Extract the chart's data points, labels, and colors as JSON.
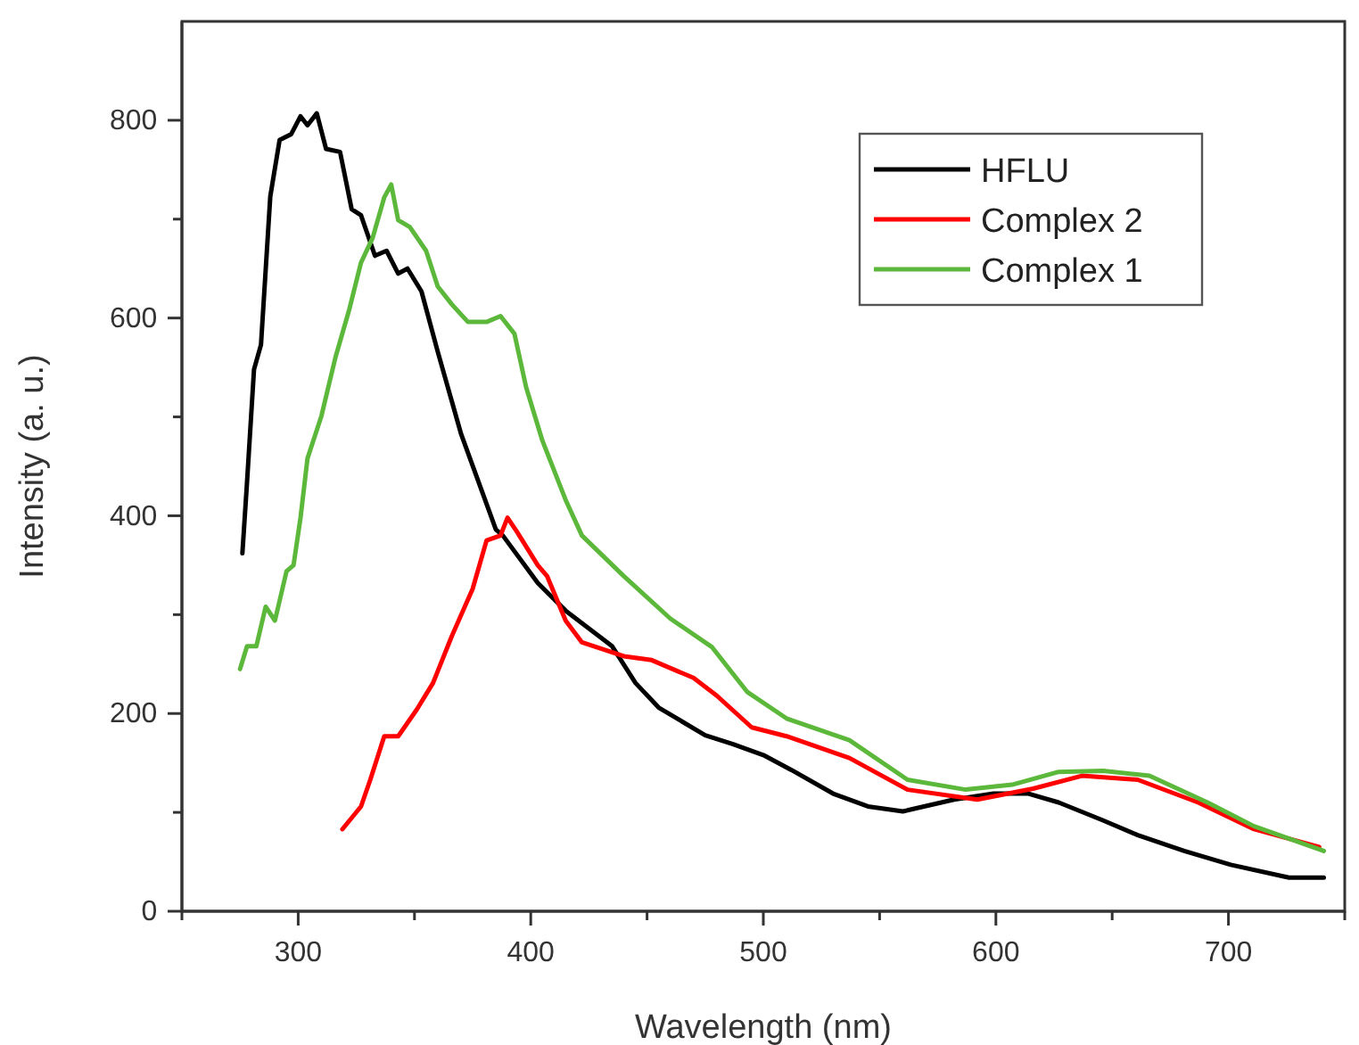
{
  "chart_data": {
    "type": "line",
    "xlabel": "Wavelength (nm)",
    "ylabel": "Intensity (a. u.)",
    "xlim": [
      250,
      750
    ],
    "xticks": [
      {
        "value": 250,
        "label": null
      },
      300,
      {
        "value": 350,
        "label": null
      },
      400,
      {
        "value": 450,
        "label": null
      },
      500,
      {
        "value": 550,
        "label": null
      },
      600,
      {
        "value": 650,
        "label": null
      },
      700,
      {
        "value": 750,
        "label": null
      }
    ],
    "ylim": [
      0,
      900
    ],
    "yticks": [
      0,
      {
        "value": 100,
        "label": null
      },
      200,
      {
        "value": 300,
        "label": null
      },
      400,
      {
        "value": 500,
        "label": null
      },
      600,
      {
        "value": 700,
        "label": null
      },
      800
    ],
    "grid": false,
    "legend": "top right",
    "line_style": "solid",
    "marker": "none",
    "series": [
      {
        "name": "HFLU",
        "color": "#000000",
        "x": [
          276,
          278,
          281,
          284,
          288,
          292,
          297,
          301,
          304,
          308,
          312,
          318,
          323,
          327,
          333,
          338,
          343,
          347,
          353,
          360,
          370,
          385,
          388,
          403,
          415,
          435,
          445,
          455,
          475,
          487,
          500,
          512,
          530,
          545,
          560,
          582,
          599,
          614,
          627,
          646,
          661,
          681,
          701,
          726,
          741
        ],
        "values": [
          362,
          434,
          548,
          573,
          723,
          780,
          786,
          804,
          795,
          807,
          771,
          768,
          710,
          704,
          663,
          668,
          645,
          650,
          627,
          566,
          483,
          386,
          380,
          332,
          304,
          268,
          231,
          206,
          178,
          169,
          158,
          143,
          119,
          106,
          101,
          113,
          119,
          119,
          110,
          92,
          77,
          61,
          47,
          34,
          34
        ]
      },
      {
        "name": "Complex 2",
        "color": "#ff0000",
        "x": [
          319,
          327,
          331,
          337,
          343,
          351,
          358,
          366,
          375,
          381,
          387,
          390,
          394,
          403,
          407,
          415,
          422,
          440,
          452,
          470,
          480,
          495,
          510,
          537,
          562,
          592,
          616,
          637,
          661,
          687,
          711,
          739
        ],
        "values": [
          83,
          106,
          133,
          177,
          177,
          204,
          231,
          278,
          326,
          375,
          380,
          398,
          384,
          350,
          339,
          294,
          272,
          258,
          254,
          236,
          218,
          186,
          177,
          155,
          123,
          113,
          124,
          137,
          133,
          110,
          83,
          65
        ]
      },
      {
        "name": "Complex 1",
        "color": "#5cb83a",
        "x": [
          275,
          278,
          282,
          286,
          290,
          295,
          298,
          301,
          304,
          310,
          316,
          322,
          327,
          332,
          337,
          340,
          343,
          348,
          355,
          360,
          366,
          373,
          381,
          387,
          393,
          398,
          405,
          415,
          422,
          440,
          460,
          478,
          493,
          510,
          537,
          562,
          587,
          607,
          627,
          646,
          666,
          691,
          711,
          741
        ],
        "values": [
          245,
          268,
          268,
          308,
          294,
          344,
          350,
          398,
          458,
          501,
          560,
          609,
          656,
          681,
          722,
          735,
          699,
          692,
          668,
          632,
          614,
          596,
          596,
          602,
          584,
          530,
          476,
          416,
          380,
          339,
          296,
          267,
          222,
          195,
          173,
          133,
          123,
          128,
          141,
          142,
          137,
          110,
          86,
          61
        ]
      }
    ]
  }
}
